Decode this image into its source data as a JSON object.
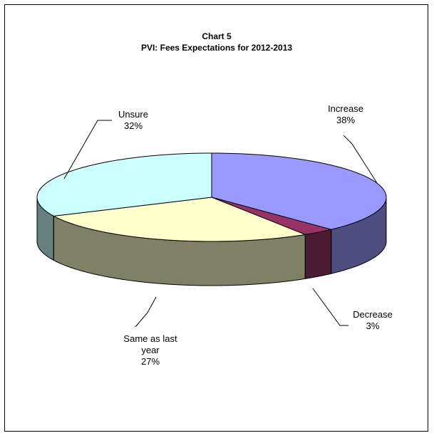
{
  "chart_data": {
    "type": "pie",
    "title_lines": [
      "Chart 5",
      "PVI: Fees Expectations for 2012-2013"
    ],
    "slices": [
      {
        "label": "Increase",
        "value": 38,
        "value_label": "38%",
        "color": "#9999FF",
        "side_color": "#4D4D80",
        "label_lines": [
          "Increase",
          "38%"
        ]
      },
      {
        "label": "Decrease",
        "value": 3,
        "value_label": "3%",
        "color": "#993366",
        "side_color": "#4D1A33",
        "label_lines": [
          "Decrease",
          "3%"
        ]
      },
      {
        "label": "Same as last year",
        "value": 27,
        "value_label": "27%",
        "color": "#FFFFCC",
        "side_color": "#808066",
        "label_lines": [
          "Same as last",
          "year",
          "27%"
        ]
      },
      {
        "label": "Unsure",
        "value": 32,
        "value_label": "32%",
        "color": "#CCFFFF",
        "side_color": "#668080",
        "label_lines": [
          "Unsure",
          "32%"
        ]
      }
    ],
    "start_angle": "12 o'clock, clockwise",
    "legend": "none",
    "style": "3d-tilted"
  }
}
